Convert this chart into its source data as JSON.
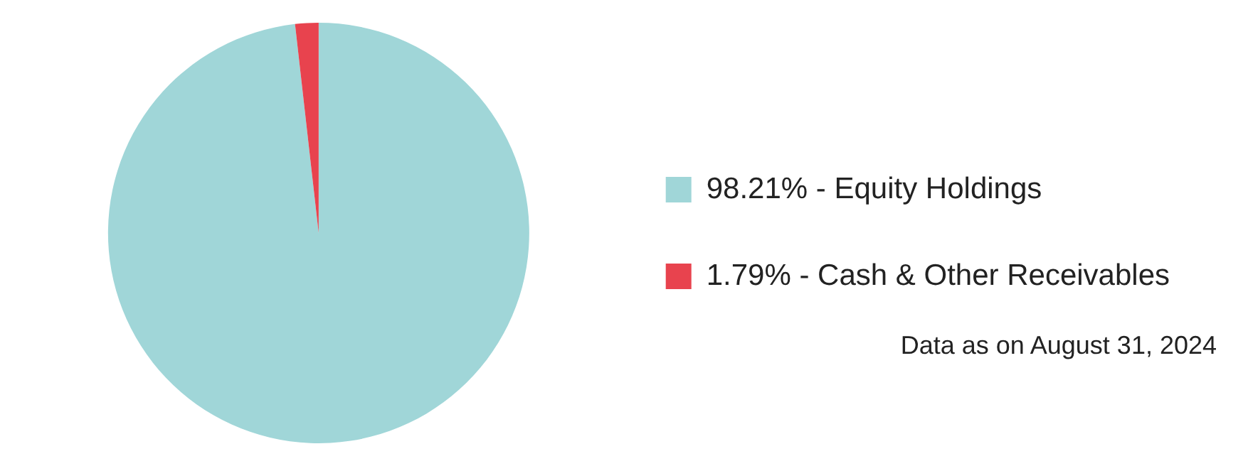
{
  "chart_data": {
    "type": "pie",
    "categories": [
      "98.21% - Equity Holdings",
      "1.79% - Cash & Other Receivables"
    ],
    "values": [
      98.21,
      1.79
    ],
    "colors": [
      "#a0d6d8",
      "#e8434e"
    ],
    "legend": "right",
    "annotations": [
      "Data as on August 31, 2024"
    ]
  }
}
